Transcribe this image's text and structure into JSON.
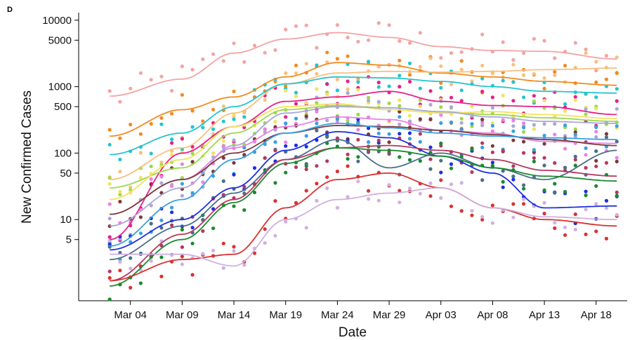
{
  "panel_label": "D",
  "chart_data": {
    "type": "line",
    "xlabel": "Date",
    "ylabel": "New Confirmed Cases",
    "yscale": "log",
    "xlim": [
      "2020-02-28",
      "2020-04-21"
    ],
    "ylim": [
      0.6,
      13000
    ],
    "x_ticks": [
      "Mar 04",
      "Mar 09",
      "Mar 14",
      "Mar 19",
      "Mar 24",
      "Mar 29",
      "Apr 03",
      "Apr 08",
      "Apr 13",
      "Apr 18"
    ],
    "x_tick_dates": [
      "2020-03-04",
      "2020-03-09",
      "2020-03-14",
      "2020-03-19",
      "2020-03-24",
      "2020-03-29",
      "2020-04-03",
      "2020-04-08",
      "2020-04-13",
      "2020-04-18"
    ],
    "y_ticks": [
      5,
      10,
      50,
      100,
      500,
      1000,
      5000,
      10000
    ],
    "y_tick_labels": [
      "5",
      "10",
      "50",
      "100",
      "500",
      "1000",
      "5000",
      "10000"
    ],
    "grid": false,
    "legend": "none",
    "series": [
      {
        "color": "#f4a3a3",
        "x": [
          "2020-03-02",
          "2020-03-09",
          "2020-03-14",
          "2020-03-19",
          "2020-03-24",
          "2020-03-29",
          "2020-04-03",
          "2020-04-08",
          "2020-04-13",
          "2020-04-20"
        ],
        "values": [
          720,
          1300,
          3200,
          5200,
          6500,
          5500,
          4000,
          3500,
          3400,
          2600
        ]
      },
      {
        "color": "#f28a1f",
        "x": [
          "2020-03-02",
          "2020-03-09",
          "2020-03-14",
          "2020-03-19",
          "2020-03-24",
          "2020-03-29",
          "2020-04-03",
          "2020-04-08",
          "2020-04-13",
          "2020-04-20"
        ],
        "values": [
          180,
          450,
          700,
          1400,
          2300,
          2100,
          1600,
          1400,
          1200,
          1050
        ]
      },
      {
        "color": "#f7c07f",
        "x": [
          "2020-03-02",
          "2020-03-09",
          "2020-03-14",
          "2020-03-19",
          "2020-03-24",
          "2020-03-29",
          "2020-04-03",
          "2020-04-08",
          "2020-04-13",
          "2020-04-20"
        ],
        "values": [
          40,
          120,
          400,
          1100,
          1600,
          1700,
          1650,
          1700,
          1800,
          1900
        ]
      },
      {
        "color": "#25c4cf",
        "x": [
          "2020-03-02",
          "2020-03-09",
          "2020-03-14",
          "2020-03-19",
          "2020-03-24",
          "2020-03-29",
          "2020-04-03",
          "2020-04-08",
          "2020-04-13",
          "2020-04-20"
        ],
        "values": [
          95,
          200,
          500,
          1100,
          1400,
          1350,
          1200,
          1000,
          850,
          800
        ]
      },
      {
        "color": "#e6208a",
        "x": [
          "2020-03-02",
          "2020-03-09",
          "2020-03-14",
          "2020-03-19",
          "2020-03-24",
          "2020-03-29",
          "2020-04-03",
          "2020-04-08",
          "2020-04-13",
          "2020-04-20"
        ],
        "values": [
          5,
          100,
          250,
          600,
          700,
          850,
          600,
          520,
          500,
          380
        ]
      },
      {
        "color": "#9dd84a",
        "x": [
          "2020-03-02",
          "2020-03-09",
          "2020-03-14",
          "2020-03-19",
          "2020-03-24",
          "2020-03-29",
          "2020-04-03",
          "2020-04-08",
          "2020-04-13",
          "2020-04-20"
        ],
        "values": [
          30,
          60,
          200,
          450,
          520,
          480,
          420,
          380,
          340,
          300
        ]
      },
      {
        "color": "#f2e35c",
        "x": [
          "2020-03-02",
          "2020-03-09",
          "2020-03-14",
          "2020-03-19",
          "2020-03-24",
          "2020-03-29",
          "2020-04-03",
          "2020-04-08",
          "2020-04-13",
          "2020-04-20"
        ],
        "values": [
          20,
          80,
          250,
          500,
          550,
          450,
          400,
          420,
          380,
          330
        ]
      },
      {
        "color": "#a8a8d8",
        "x": [
          "2020-03-02",
          "2020-03-09",
          "2020-03-14",
          "2020-03-19",
          "2020-03-24",
          "2020-03-29",
          "2020-04-03",
          "2020-04-08",
          "2020-04-13",
          "2020-04-20"
        ],
        "values": [
          8,
          30,
          130,
          400,
          500,
          480,
          420,
          350,
          300,
          280
        ]
      },
      {
        "color": "#ed80e6",
        "x": [
          "2020-03-02",
          "2020-03-09",
          "2020-03-14",
          "2020-03-19",
          "2020-03-24",
          "2020-03-29",
          "2020-04-03",
          "2020-04-08",
          "2020-04-13",
          "2020-04-20"
        ],
        "values": [
          12,
          40,
          120,
          250,
          350,
          320,
          220,
          200,
          150,
          140
        ]
      },
      {
        "color": "#7c3a3a",
        "x": [
          "2020-03-02",
          "2020-03-09",
          "2020-03-14",
          "2020-03-19",
          "2020-03-24",
          "2020-03-29",
          "2020-04-03",
          "2020-04-08",
          "2020-04-13",
          "2020-04-20"
        ],
        "values": [
          12,
          40,
          100,
          200,
          260,
          250,
          220,
          190,
          160,
          130
        ]
      },
      {
        "color": "#3aa0e0",
        "x": [
          "2020-03-02",
          "2020-03-09",
          "2020-03-14",
          "2020-03-19",
          "2020-03-24",
          "2020-03-29",
          "2020-04-03",
          "2020-04-08",
          "2020-04-13",
          "2020-04-20"
        ],
        "values": [
          4,
          20,
          80,
          200,
          280,
          240,
          200,
          180,
          170,
          160
        ]
      },
      {
        "color": "#1f2fe0",
        "x": [
          "2020-03-02",
          "2020-03-09",
          "2020-03-14",
          "2020-03-19",
          "2020-03-24",
          "2020-03-29",
          "2020-04-03",
          "2020-04-08",
          "2020-04-13",
          "2020-04-20"
        ],
        "values": [
          3.5,
          10,
          30,
          110,
          210,
          170,
          90,
          50,
          15,
          16
        ]
      },
      {
        "color": "#4a6e8a",
        "x": [
          "2020-03-02",
          "2020-03-09",
          "2020-03-14",
          "2020-03-19",
          "2020-03-24",
          "2020-03-29",
          "2020-04-03",
          "2020-04-08",
          "2020-04-13",
          "2020-04-20"
        ],
        "values": [
          2.5,
          8,
          25,
          80,
          160,
          60,
          100,
          60,
          40,
          110
        ]
      },
      {
        "color": "#b5385e",
        "x": [
          "2020-03-02",
          "2020-03-09",
          "2020-03-14",
          "2020-03-19",
          "2020-03-24",
          "2020-03-29",
          "2020-04-03",
          "2020-04-08",
          "2020-04-13",
          "2020-04-20"
        ],
        "values": [
          1.2,
          6,
          20,
          80,
          120,
          130,
          110,
          80,
          55,
          45
        ]
      },
      {
        "color": "#1a8a2e",
        "x": [
          "2020-03-02",
          "2020-03-09",
          "2020-03-14",
          "2020-03-19",
          "2020-03-24",
          "2020-03-29",
          "2020-04-03",
          "2020-04-08",
          "2020-04-13",
          "2020-04-20"
        ],
        "values": [
          1,
          5,
          18,
          70,
          120,
          110,
          90,
          60,
          45,
          38
        ]
      },
      {
        "color": "#d93232",
        "x": [
          "2020-03-02",
          "2020-03-09",
          "2020-03-14",
          "2020-03-19",
          "2020-03-24",
          "2020-03-29",
          "2020-04-03",
          "2020-04-08",
          "2020-04-13",
          "2020-04-20"
        ],
        "values": [
          1.2,
          2.5,
          3,
          15,
          40,
          50,
          30,
          15,
          10,
          8
        ]
      },
      {
        "color": "#d0b0e0",
        "x": [
          "2020-03-02",
          "2020-03-09",
          "2020-03-14",
          "2020-03-19",
          "2020-03-24",
          "2020-03-29",
          "2020-04-03",
          "2020-04-08",
          "2020-04-13",
          "2020-04-20"
        ],
        "values": [
          3,
          3,
          2,
          10,
          20,
          25,
          30,
          15,
          11,
          10
        ]
      }
    ]
  }
}
